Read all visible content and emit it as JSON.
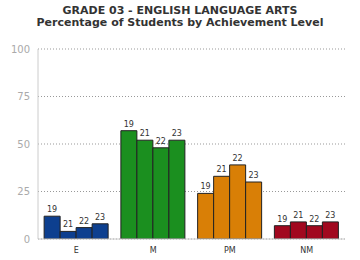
{
  "chart_data": {
    "type": "bar",
    "title": "GRADE 03 - ENGLISH LANGUAGE ARTS",
    "subtitle": "Percentage of Students by Achievement Level",
    "categories": [
      "E",
      "M",
      "PM",
      "NM"
    ],
    "series": [
      {
        "name": "19",
        "values": [
          12,
          57,
          24,
          7
        ],
        "colors": [
          "#0d3f8f",
          "#1b8f1f",
          "#d97f06",
          "#a1081f"
        ]
      },
      {
        "name": "21",
        "values": [
          4,
          52,
          33,
          9
        ],
        "colors": [
          "#0d3f8f",
          "#1b8f1f",
          "#d97f06",
          "#a1081f"
        ]
      },
      {
        "name": "22",
        "values": [
          6,
          48,
          39,
          7
        ],
        "colors": [
          "#0d3f8f",
          "#1b8f1f",
          "#d97f06",
          "#a1081f"
        ]
      },
      {
        "name": "23",
        "values": [
          8,
          52,
          30,
          9
        ],
        "colors": [
          "#0d3f8f",
          "#1b8f1f",
          "#d97f06",
          "#a1081f"
        ]
      }
    ],
    "ylim": [
      0,
      100
    ],
    "yticks": [
      0,
      25,
      50,
      75,
      100
    ],
    "grid": true
  }
}
